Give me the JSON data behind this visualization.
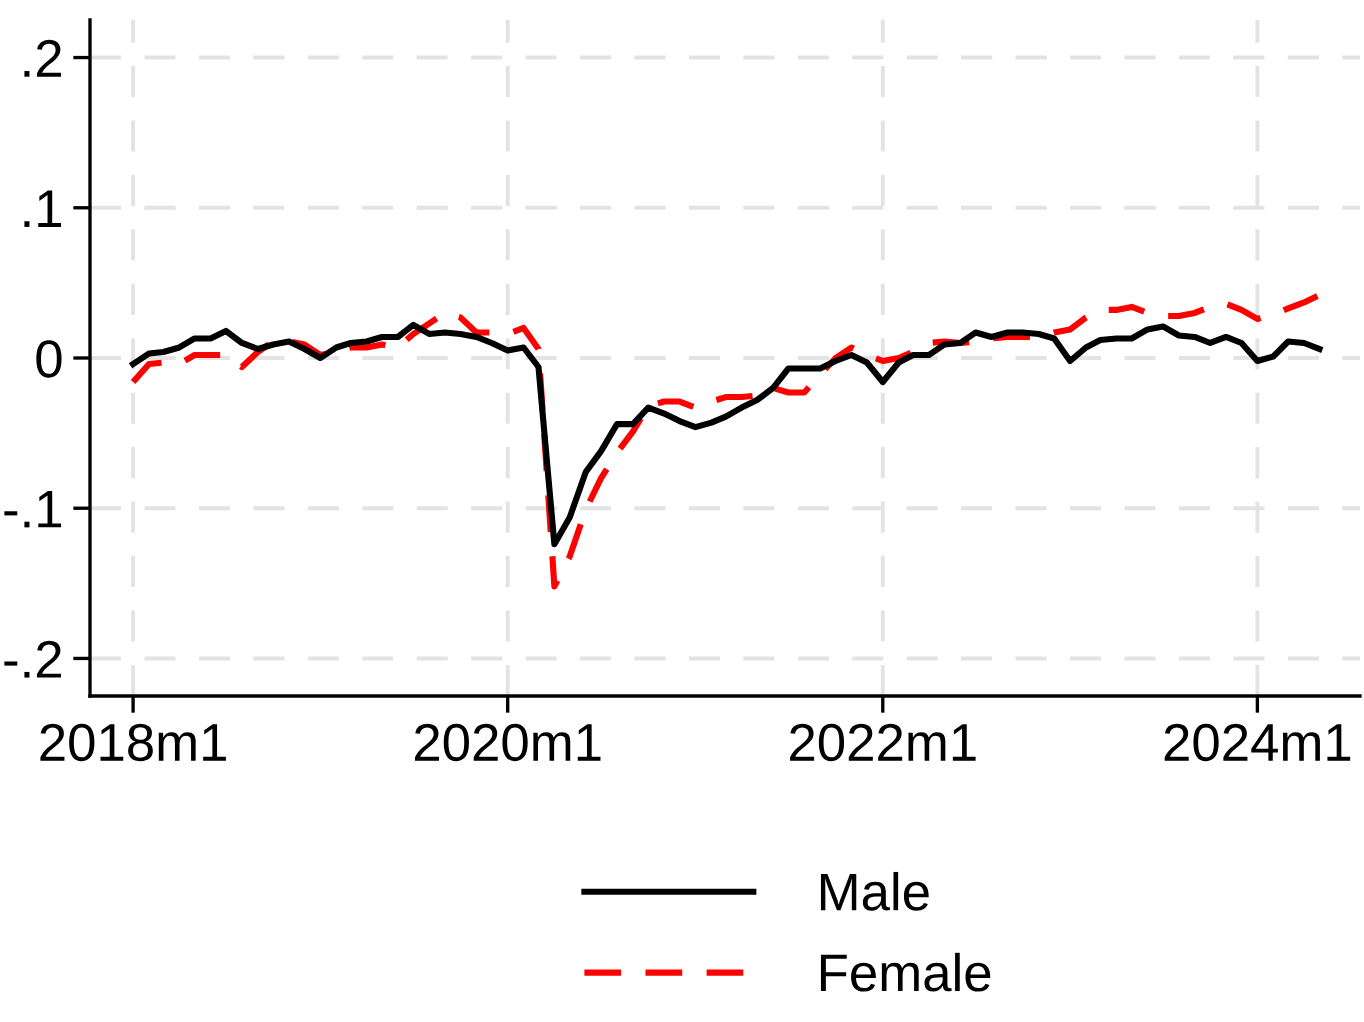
{
  "chart_data": {
    "type": "line",
    "x": [
      "2018-01",
      "2018-02",
      "2018-03",
      "2018-04",
      "2018-05",
      "2018-06",
      "2018-07",
      "2018-08",
      "2018-09",
      "2018-10",
      "2018-11",
      "2018-12",
      "2019-01",
      "2019-02",
      "2019-03",
      "2019-04",
      "2019-05",
      "2019-06",
      "2019-07",
      "2019-08",
      "2019-09",
      "2019-10",
      "2019-11",
      "2019-12",
      "2020-01",
      "2020-02",
      "2020-03",
      "2020-04",
      "2020-05",
      "2020-06",
      "2020-07",
      "2020-08",
      "2020-09",
      "2020-10",
      "2020-11",
      "2020-12",
      "2021-01",
      "2021-02",
      "2021-03",
      "2021-04",
      "2021-05",
      "2021-06",
      "2021-07",
      "2021-08",
      "2021-09",
      "2021-10",
      "2021-11",
      "2021-12",
      "2022-01",
      "2022-02",
      "2022-03",
      "2022-04",
      "2022-05",
      "2022-06",
      "2022-07",
      "2022-08",
      "2022-09",
      "2022-10",
      "2022-11",
      "2022-12",
      "2023-01",
      "2023-02",
      "2023-03",
      "2023-04",
      "2023-05",
      "2023-06",
      "2023-07",
      "2023-08",
      "2023-09",
      "2023-10",
      "2023-11",
      "2023-12",
      "2024-01",
      "2024-02",
      "2024-03",
      "2024-04",
      "2024-05"
    ],
    "series": [
      {
        "name": "Male",
        "color": "#000000",
        "line_style": "solid",
        "values": [
          -0.004,
          0.003,
          0.004,
          0.007,
          0.013,
          0.013,
          0.018,
          0.01,
          0.006,
          0.009,
          0.011,
          0.006,
          0.0,
          0.007,
          0.01,
          0.011,
          0.014,
          0.014,
          0.022,
          0.016,
          0.017,
          0.016,
          0.014,
          0.01,
          0.005,
          0.007,
          -0.006,
          -0.124,
          -0.106,
          -0.076,
          -0.062,
          -0.044,
          -0.044,
          -0.033,
          -0.037,
          -0.042,
          -0.046,
          -0.043,
          -0.039,
          -0.033,
          -0.028,
          -0.02,
          -0.007,
          -0.007,
          -0.007,
          -0.002,
          0.002,
          -0.003,
          -0.016,
          -0.003,
          0.002,
          0.002,
          0.009,
          0.01,
          0.017,
          0.014,
          0.017,
          0.017,
          0.016,
          0.013,
          -0.002,
          0.007,
          0.012,
          0.013,
          0.013,
          0.019,
          0.021,
          0.015,
          0.014,
          0.01,
          0.014,
          0.01,
          -0.002,
          0.001,
          0.011,
          0.01,
          0.006
        ]
      },
      {
        "name": "Female",
        "color": "#ff0000",
        "line_style": "dashed",
        "values": [
          -0.016,
          -0.004,
          -0.003,
          -0.004,
          0.002,
          0.002,
          0.002,
          -0.006,
          0.004,
          0.011,
          0.011,
          0.009,
          0.002,
          0.004,
          0.007,
          0.007,
          0.009,
          0.007,
          0.016,
          0.023,
          0.03,
          0.027,
          0.017,
          0.017,
          0.016,
          0.02,
          0.006,
          -0.152,
          -0.132,
          -0.101,
          -0.08,
          -0.063,
          -0.049,
          -0.032,
          -0.029,
          -0.029,
          -0.033,
          -0.029,
          -0.026,
          -0.026,
          -0.025,
          -0.02,
          -0.023,
          -0.023,
          -0.011,
          0.0,
          0.007,
          0.002,
          -0.002,
          0.0,
          0.004,
          0.01,
          0.011,
          0.01,
          0.011,
          0.013,
          0.014,
          0.014,
          0.014,
          0.017,
          0.019,
          0.027,
          0.032,
          0.032,
          0.034,
          0.03,
          0.028,
          0.028,
          0.03,
          0.034,
          0.036,
          0.032,
          0.026,
          0.029,
          0.033,
          0.037,
          0.042
        ]
      }
    ],
    "xlim": [
      "2017-10-09",
      "2024-07-19"
    ],
    "xticks": [
      {
        "value": "2018-01",
        "label": "2018m1"
      },
      {
        "value": "2020-01",
        "label": "2020m1"
      },
      {
        "value": "2022-01",
        "label": "2022m1"
      },
      {
        "value": "2024-01",
        "label": "2024m1"
      }
    ],
    "ylim": [
      -0.225,
      0.225
    ],
    "yticks": [
      {
        "value": -0.2,
        "label": "-.2"
      },
      {
        "value": -0.1,
        "label": "-.1"
      },
      {
        "value": 0,
        "label": "0"
      },
      {
        "value": 0.1,
        "label": ".1"
      },
      {
        "value": 0.2,
        "label": ".2"
      }
    ],
    "grid": true,
    "legend": "bottom",
    "marker": "none"
  }
}
